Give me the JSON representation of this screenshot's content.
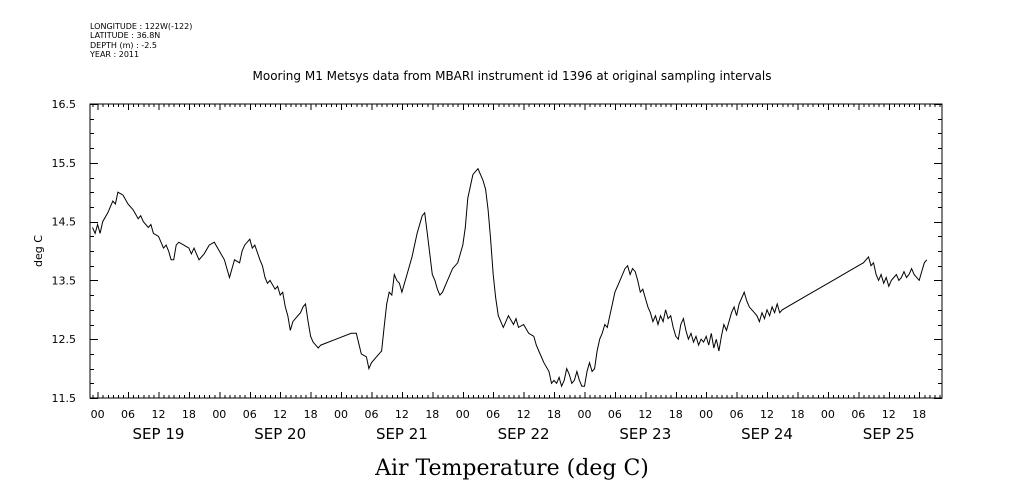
{
  "header": {
    "longitude": "LONGITUDE : 122W(-122)",
    "latitude": "LATITUDE : 36.8N",
    "depth": "DEPTH (m) : -2.5",
    "year": "YEAR : 2011"
  },
  "chart_data": {
    "type": "line",
    "title": "Mooring M1 Metsys data from MBARI instrument id 1396 at original sampling intervals",
    "xlabel": "Air Temperature (deg C)",
    "ylabel": "deg C",
    "ylim": [
      11.5,
      16.5
    ],
    "yticks": [
      "11.5",
      "12.5",
      "13.5",
      "14.5",
      "15.5",
      "16.5"
    ],
    "x_unit": "hours since Sep 19 00:00 2011",
    "xlim": [
      -1.5,
      166.5
    ],
    "hour_ticks": [
      "00",
      "06",
      "12",
      "18",
      "00",
      "06",
      "12",
      "18",
      "00",
      "06",
      "12",
      "18",
      "00",
      "06",
      "12",
      "18",
      "00",
      "06",
      "12",
      "18",
      "00",
      "06",
      "12",
      "18",
      "00",
      "06",
      "12",
      "18"
    ],
    "day_labels": [
      "SEP 19",
      "SEP 20",
      "SEP 21",
      "SEP 22",
      "SEP 23",
      "SEP 24",
      "SEP 25"
    ],
    "grid": false,
    "series": [
      {
        "name": "",
        "points": [
          [
            -1,
            14.4
          ],
          [
            -0.5,
            14.3
          ],
          [
            0,
            14.45
          ],
          [
            0.5,
            14.3
          ],
          [
            1,
            14.5
          ],
          [
            2,
            14.65
          ],
          [
            3,
            14.85
          ],
          [
            3.5,
            14.8
          ],
          [
            4,
            15.0
          ],
          [
            5,
            14.95
          ],
          [
            6,
            14.8
          ],
          [
            7,
            14.7
          ],
          [
            8,
            14.55
          ],
          [
            8.5,
            14.6
          ],
          [
            9,
            14.5
          ],
          [
            10,
            14.4
          ],
          [
            10.5,
            14.45
          ],
          [
            11,
            14.3
          ],
          [
            12,
            14.25
          ],
          [
            13,
            14.05
          ],
          [
            13.5,
            14.1
          ],
          [
            14,
            14.0
          ],
          [
            14.5,
            13.85
          ],
          [
            15,
            13.85
          ],
          [
            15.5,
            14.1
          ],
          [
            16,
            14.15
          ],
          [
            17,
            14.1
          ],
          [
            18,
            14.05
          ],
          [
            18.5,
            13.95
          ],
          [
            19,
            14.05
          ],
          [
            20,
            13.85
          ],
          [
            21,
            13.95
          ],
          [
            22,
            14.1
          ],
          [
            23,
            14.15
          ],
          [
            24,
            14.0
          ],
          [
            25,
            13.85
          ],
          [
            25.5,
            13.7
          ],
          [
            26,
            13.55
          ],
          [
            26.5,
            13.7
          ],
          [
            27,
            13.85
          ],
          [
            28,
            13.8
          ],
          [
            28.5,
            14.0
          ],
          [
            29,
            14.1
          ],
          [
            30,
            14.2
          ],
          [
            30.5,
            14.05
          ],
          [
            31,
            14.1
          ],
          [
            32,
            13.85
          ],
          [
            32.5,
            13.75
          ],
          [
            33,
            13.55
          ],
          [
            33.5,
            13.45
          ],
          [
            34,
            13.5
          ],
          [
            35,
            13.35
          ],
          [
            35.5,
            13.4
          ],
          [
            36,
            13.25
          ],
          [
            36.5,
            13.3
          ],
          [
            37,
            13.05
          ],
          [
            37.5,
            12.9
          ],
          [
            38,
            12.65
          ],
          [
            38.5,
            12.8
          ],
          [
            39,
            12.85
          ],
          [
            40,
            12.95
          ],
          [
            40.5,
            13.05
          ],
          [
            41,
            13.1
          ],
          [
            41.5,
            12.8
          ],
          [
            42,
            12.55
          ],
          [
            42.5,
            12.45
          ],
          [
            43,
            12.4
          ],
          [
            43.5,
            12.35
          ],
          [
            44,
            12.4
          ],
          [
            47,
            12.5
          ],
          [
            50,
            12.6
          ],
          [
            51,
            12.6
          ],
          [
            52,
            12.25
          ],
          [
            53,
            12.2
          ],
          [
            53.5,
            12.0
          ],
          [
            54,
            12.1
          ],
          [
            55,
            12.2
          ],
          [
            56,
            12.3
          ],
          [
            56.5,
            12.7
          ],
          [
            57,
            13.1
          ],
          [
            57.5,
            13.3
          ],
          [
            58,
            13.25
          ],
          [
            58.5,
            13.6
          ],
          [
            59,
            13.5
          ],
          [
            59.5,
            13.45
          ],
          [
            60,
            13.3
          ],
          [
            61,
            13.6
          ],
          [
            62,
            13.9
          ],
          [
            63,
            14.3
          ],
          [
            64,
            14.6
          ],
          [
            64.5,
            14.65
          ],
          [
            65,
            14.3
          ],
          [
            66,
            13.6
          ],
          [
            66.5,
            13.5
          ],
          [
            67,
            13.35
          ],
          [
            67.5,
            13.25
          ],
          [
            68,
            13.3
          ],
          [
            69,
            13.5
          ],
          [
            70,
            13.7
          ],
          [
            71,
            13.8
          ],
          [
            72,
            14.1
          ],
          [
            72.5,
            14.4
          ],
          [
            73,
            14.9
          ],
          [
            74,
            15.3
          ],
          [
            74.5,
            15.35
          ],
          [
            75,
            15.4
          ],
          [
            75.5,
            15.3
          ],
          [
            76,
            15.2
          ],
          [
            76.5,
            15.05
          ],
          [
            77,
            14.7
          ],
          [
            77.5,
            14.2
          ],
          [
            78,
            13.6
          ],
          [
            78.5,
            13.2
          ],
          [
            79,
            12.9
          ],
          [
            80,
            12.7
          ],
          [
            80.5,
            12.8
          ],
          [
            81,
            12.9
          ],
          [
            82,
            12.75
          ],
          [
            82.5,
            12.85
          ],
          [
            83,
            12.7
          ],
          [
            84,
            12.75
          ],
          [
            85,
            12.6
          ],
          [
            86,
            12.55
          ],
          [
            86.5,
            12.4
          ],
          [
            87,
            12.3
          ],
          [
            88,
            12.1
          ],
          [
            89,
            11.95
          ],
          [
            89.5,
            11.75
          ],
          [
            90,
            11.8
          ],
          [
            90.5,
            11.75
          ],
          [
            91,
            11.85
          ],
          [
            91.5,
            11.7
          ],
          [
            92,
            11.8
          ],
          [
            92.5,
            12.0
          ],
          [
            93,
            11.9
          ],
          [
            93.5,
            11.75
          ],
          [
            94,
            11.8
          ],
          [
            94.5,
            11.95
          ],
          [
            95,
            11.8
          ],
          [
            95.5,
            11.7
          ],
          [
            96,
            11.7
          ],
          [
            96.5,
            11.95
          ],
          [
            97,
            12.1
          ],
          [
            97.5,
            11.95
          ],
          [
            98,
            12.0
          ],
          [
            98.5,
            12.3
          ],
          [
            99,
            12.5
          ],
          [
            99.5,
            12.6
          ],
          [
            100,
            12.75
          ],
          [
            100.5,
            12.7
          ],
          [
            101,
            12.9
          ],
          [
            101.5,
            13.1
          ],
          [
            102,
            13.3
          ],
          [
            103,
            13.5
          ],
          [
            104,
            13.7
          ],
          [
            104.5,
            13.75
          ],
          [
            105,
            13.6
          ],
          [
            105.5,
            13.7
          ],
          [
            106,
            13.65
          ],
          [
            106.5,
            13.5
          ],
          [
            107,
            13.3
          ],
          [
            107.5,
            13.35
          ],
          [
            108,
            13.2
          ],
          [
            108.5,
            13.05
          ],
          [
            109,
            12.95
          ],
          [
            109.5,
            12.8
          ],
          [
            110,
            12.9
          ],
          [
            110.5,
            12.75
          ],
          [
            111,
            12.9
          ],
          [
            111.5,
            12.8
          ],
          [
            112,
            13.0
          ],
          [
            112.5,
            12.85
          ],
          [
            113,
            12.9
          ],
          [
            113.5,
            12.7
          ],
          [
            114,
            12.55
          ],
          [
            114.5,
            12.5
          ],
          [
            115,
            12.75
          ],
          [
            115.5,
            12.85
          ],
          [
            116,
            12.65
          ],
          [
            116.5,
            12.5
          ],
          [
            117,
            12.6
          ],
          [
            117.5,
            12.45
          ],
          [
            118,
            12.55
          ],
          [
            118.5,
            12.4
          ],
          [
            119,
            12.5
          ],
          [
            119.5,
            12.45
          ],
          [
            120,
            12.55
          ],
          [
            120.5,
            12.4
          ],
          [
            121,
            12.6
          ],
          [
            121.5,
            12.35
          ],
          [
            122,
            12.5
          ],
          [
            122.5,
            12.3
          ],
          [
            123,
            12.55
          ],
          [
            123.5,
            12.75
          ],
          [
            124,
            12.65
          ],
          [
            124.5,
            12.8
          ],
          [
            125,
            12.95
          ],
          [
            125.5,
            13.05
          ],
          [
            126,
            12.9
          ],
          [
            126.5,
            13.1
          ],
          [
            127,
            13.2
          ],
          [
            127.5,
            13.3
          ],
          [
            128,
            13.15
          ],
          [
            128.5,
            13.05
          ],
          [
            129,
            13.0
          ],
          [
            129.5,
            12.95
          ],
          [
            130,
            12.9
          ],
          [
            130.5,
            12.8
          ],
          [
            131,
            12.95
          ],
          [
            131.5,
            12.85
          ],
          [
            132,
            13.0
          ],
          [
            132.5,
            12.9
          ],
          [
            133,
            13.05
          ],
          [
            133.5,
            12.95
          ],
          [
            134,
            13.1
          ],
          [
            134.5,
            12.95
          ],
          [
            135,
            13.0
          ],
          [
            140,
            13.25
          ],
          [
            145,
            13.5
          ],
          [
            150,
            13.75
          ],
          [
            151,
            13.8
          ],
          [
            152,
            13.9
          ],
          [
            152.5,
            13.75
          ],
          [
            153,
            13.8
          ],
          [
            153.5,
            13.6
          ],
          [
            154,
            13.5
          ],
          [
            154.5,
            13.6
          ],
          [
            155,
            13.45
          ],
          [
            155.5,
            13.55
          ],
          [
            156,
            13.4
          ],
          [
            156.5,
            13.5
          ],
          [
            157,
            13.55
          ],
          [
            157.5,
            13.6
          ],
          [
            158,
            13.5
          ],
          [
            158.5,
            13.55
          ],
          [
            159,
            13.65
          ],
          [
            159.5,
            13.55
          ],
          [
            160,
            13.6
          ],
          [
            160.5,
            13.7
          ],
          [
            161,
            13.6
          ],
          [
            162,
            13.5
          ],
          [
            162.5,
            13.65
          ],
          [
            163,
            13.8
          ],
          [
            163.5,
            13.85
          ]
        ]
      }
    ]
  }
}
